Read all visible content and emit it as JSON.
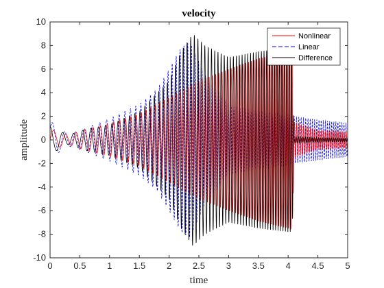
{
  "chart_data": {
    "type": "line",
    "title": "velocity",
    "xlabel": "time",
    "ylabel": "amplitude",
    "xlim": [
      0,
      5
    ],
    "ylim": [
      -10,
      10
    ],
    "xticks": [
      "0",
      "0.5",
      "1",
      "1.5",
      "2",
      "2.5",
      "3",
      "3.5",
      "4",
      "4.5",
      "5"
    ],
    "yticks": [
      "10",
      "8",
      "6",
      "4",
      "2",
      "0",
      "-2",
      "-4",
      "-6",
      "-8",
      "-10"
    ],
    "grid": false,
    "legend_position": "top-right",
    "series": [
      {
        "name": "Nonlinear",
        "color": "#ff0000",
        "style": "solid",
        "envelope": {
          "x": [
            0,
            0.3,
            0.6,
            1.0,
            1.5,
            2.0,
            2.5,
            3.0,
            3.5,
            4.0,
            4.07,
            4.1,
            4.5,
            5.0
          ],
          "amp": [
            0.9,
            0.4,
            0.9,
            1.4,
            2.2,
            3.6,
            5.0,
            6.0,
            6.9,
            7.5,
            7.6,
            1.5,
            0.8,
            0.7
          ]
        }
      },
      {
        "name": "Linear",
        "color": "#0000ff",
        "style": "dashed",
        "envelope": {
          "x": [
            0,
            0.3,
            0.6,
            1.0,
            1.5,
            1.8,
            2.0,
            2.2,
            2.35,
            2.6,
            3.0,
            3.5,
            4.0,
            4.07,
            4.1,
            4.5,
            5.0
          ],
          "amp": [
            1.6,
            0.5,
            1.0,
            1.8,
            3.0,
            4.3,
            6.0,
            7.8,
            8.3,
            5.5,
            3.0,
            2.5,
            2.2,
            2.0,
            2.0,
            1.7,
            1.4
          ]
        }
      },
      {
        "name": "Difference",
        "color": "#000000",
        "style": "solid",
        "envelope": {
          "x": [
            0,
            0.3,
            0.6,
            1.0,
            1.5,
            2.0,
            2.2,
            2.4,
            2.6,
            3.0,
            3.5,
            4.0,
            4.07,
            4.1,
            4.5,
            5.0
          ],
          "amp": [
            1.2,
            0.4,
            0.9,
            1.3,
            2.4,
            5.0,
            7.5,
            9.0,
            8.0,
            7.0,
            7.5,
            7.8,
            7.8,
            0.3,
            0.2,
            0.15
          ]
        }
      }
    ]
  }
}
